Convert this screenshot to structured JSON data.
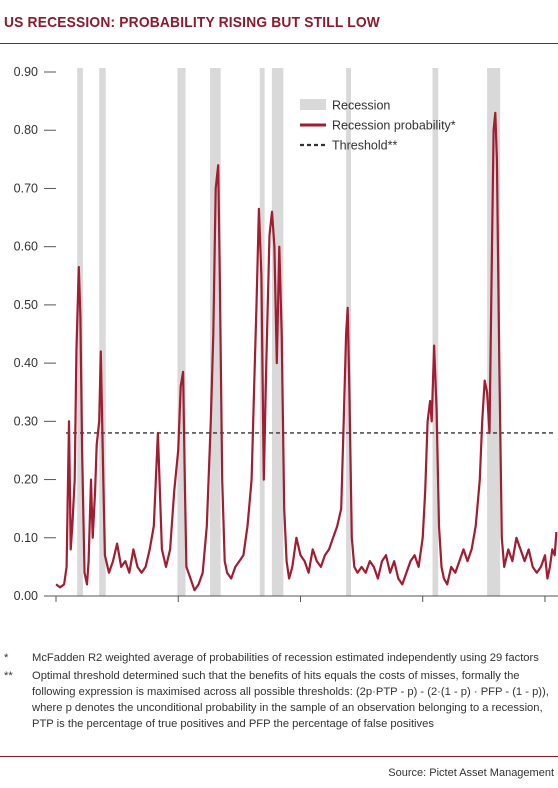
{
  "title": "US RECESSION: PROBABILITY RISING BUT STILL LOW",
  "notes": [
    {
      "marker": "*",
      "text": "McFadden R2 weighted average of probabilities of recession estimated independently using 29 factors"
    },
    {
      "marker": "**",
      "text": "Optimal threshold determined such that the benefits of hits equals the costs of misses, formally the following expression is maximised across all possible thresholds: (2p·PTP - p) - (2·(1 - p) · PFP - (1 - p)), where p denotes the unconditional probability in the sample of an observation belonging to a recession, PTP is the percentage of true positives and PFP the percentage of false positives"
    }
  ],
  "source": "Source: Pictet Asset Management",
  "colors": {
    "line": "#a01d32",
    "shade": "#d9d9d9",
    "threshold": "#333333",
    "title": "#8c1a2e"
  },
  "chart_data": {
    "type": "line",
    "xlim": [
      1955,
      2016.6
    ],
    "ylim": [
      0,
      0.9
    ],
    "yticks": [
      "0.00",
      "0.10",
      "0.20",
      "0.30",
      "0.40",
      "0.50",
      "0.60",
      "0.70",
      "0.80",
      "0.90"
    ],
    "ytick_values": [
      0,
      0.1,
      0.2,
      0.3,
      0.4,
      0.5,
      0.6,
      0.7,
      0.8,
      0.9
    ],
    "xticks": [
      "1955",
      "1970",
      "1985",
      "2000",
      "2015"
    ],
    "xtick_values": [
      1955,
      1970,
      1985,
      2000,
      2015
    ],
    "legend": {
      "position": "top-center",
      "items": [
        {
          "label": "Recession",
          "kind": "band"
        },
        {
          "label": "Recession probability*",
          "kind": "line"
        },
        {
          "label": "Threshold**",
          "kind": "dashed"
        }
      ]
    },
    "recessions": [
      [
        1957.6,
        1958.3
      ],
      [
        1960.3,
        1961.1
      ],
      [
        1969.9,
        1970.9
      ],
      [
        1973.9,
        1975.2
      ],
      [
        1980.0,
        1980.6
      ],
      [
        1981.5,
        1982.9
      ],
      [
        1990.6,
        1991.2
      ],
      [
        2001.2,
        2001.9
      ],
      [
        2007.9,
        2009.5
      ]
    ],
    "threshold": 0.28,
    "series": [
      {
        "values": [
          [
            1955.0,
            0.02
          ],
          [
            1955.5,
            0.015
          ],
          [
            1956.0,
            0.02
          ],
          [
            1956.3,
            0.05
          ],
          [
            1956.6,
            0.3
          ],
          [
            1956.8,
            0.08
          ],
          [
            1957.0,
            0.12
          ],
          [
            1957.3,
            0.2
          ],
          [
            1957.5,
            0.42
          ],
          [
            1957.8,
            0.565
          ],
          [
            1958.0,
            0.48
          ],
          [
            1958.2,
            0.25
          ],
          [
            1958.5,
            0.04
          ],
          [
            1958.8,
            0.02
          ],
          [
            1959.0,
            0.06
          ],
          [
            1959.3,
            0.2
          ],
          [
            1959.5,
            0.1
          ],
          [
            1959.8,
            0.18
          ],
          [
            1960.0,
            0.26
          ],
          [
            1960.3,
            0.3
          ],
          [
            1960.5,
            0.42
          ],
          [
            1960.8,
            0.2
          ],
          [
            1961.0,
            0.07
          ],
          [
            1961.5,
            0.04
          ],
          [
            1962.0,
            0.06
          ],
          [
            1962.5,
            0.09
          ],
          [
            1963.0,
            0.05
          ],
          [
            1963.5,
            0.06
          ],
          [
            1964.0,
            0.04
          ],
          [
            1964.5,
            0.08
          ],
          [
            1965.0,
            0.05
          ],
          [
            1965.5,
            0.04
          ],
          [
            1966.0,
            0.05
          ],
          [
            1966.5,
            0.08
          ],
          [
            1967.0,
            0.12
          ],
          [
            1967.5,
            0.28
          ],
          [
            1968.0,
            0.08
          ],
          [
            1968.5,
            0.05
          ],
          [
            1969.0,
            0.08
          ],
          [
            1969.5,
            0.18
          ],
          [
            1970.0,
            0.25
          ],
          [
            1970.3,
            0.36
          ],
          [
            1970.6,
            0.385
          ],
          [
            1970.8,
            0.2
          ],
          [
            1971.0,
            0.05
          ],
          [
            1971.5,
            0.03
          ],
          [
            1972.0,
            0.01
          ],
          [
            1972.5,
            0.02
          ],
          [
            1973.0,
            0.04
          ],
          [
            1973.5,
            0.12
          ],
          [
            1974.0,
            0.3
          ],
          [
            1974.3,
            0.45
          ],
          [
            1974.6,
            0.7
          ],
          [
            1974.9,
            0.74
          ],
          [
            1975.1,
            0.55
          ],
          [
            1975.4,
            0.2
          ],
          [
            1975.7,
            0.06
          ],
          [
            1976.0,
            0.04
          ],
          [
            1976.5,
            0.03
          ],
          [
            1977.0,
            0.05
          ],
          [
            1977.5,
            0.06
          ],
          [
            1978.0,
            0.07
          ],
          [
            1978.5,
            0.12
          ],
          [
            1979.0,
            0.2
          ],
          [
            1979.3,
            0.35
          ],
          [
            1979.6,
            0.5
          ],
          [
            1979.9,
            0.665
          ],
          [
            1980.2,
            0.55
          ],
          [
            1980.5,
            0.2
          ],
          [
            1980.8,
            0.4
          ],
          [
            1981.2,
            0.62
          ],
          [
            1981.5,
            0.66
          ],
          [
            1981.8,
            0.6
          ],
          [
            1982.1,
            0.4
          ],
          [
            1982.4,
            0.6
          ],
          [
            1982.7,
            0.45
          ],
          [
            1983.0,
            0.15
          ],
          [
            1983.3,
            0.06
          ],
          [
            1983.6,
            0.03
          ],
          [
            1984.0,
            0.05
          ],
          [
            1984.5,
            0.1
          ],
          [
            1985.0,
            0.07
          ],
          [
            1985.5,
            0.06
          ],
          [
            1986.0,
            0.04
          ],
          [
            1986.5,
            0.08
          ],
          [
            1987.0,
            0.06
          ],
          [
            1987.5,
            0.05
          ],
          [
            1988.0,
            0.07
          ],
          [
            1988.5,
            0.08
          ],
          [
            1989.0,
            0.1
          ],
          [
            1989.5,
            0.12
          ],
          [
            1990.0,
            0.15
          ],
          [
            1990.3,
            0.3
          ],
          [
            1990.6,
            0.45
          ],
          [
            1990.8,
            0.495
          ],
          [
            1991.0,
            0.35
          ],
          [
            1991.3,
            0.1
          ],
          [
            1991.6,
            0.05
          ],
          [
            1992.0,
            0.04
          ],
          [
            1992.5,
            0.05
          ],
          [
            1993.0,
            0.04
          ],
          [
            1993.5,
            0.06
          ],
          [
            1994.0,
            0.05
          ],
          [
            1994.5,
            0.03
          ],
          [
            1995.0,
            0.06
          ],
          [
            1995.5,
            0.07
          ],
          [
            1996.0,
            0.04
          ],
          [
            1996.5,
            0.06
          ],
          [
            1997.0,
            0.03
          ],
          [
            1997.5,
            0.02
          ],
          [
            1998.0,
            0.04
          ],
          [
            1998.5,
            0.06
          ],
          [
            1999.0,
            0.07
          ],
          [
            1999.5,
            0.05
          ],
          [
            2000.0,
            0.1
          ],
          [
            2000.3,
            0.18
          ],
          [
            2000.6,
            0.3
          ],
          [
            2000.9,
            0.335
          ],
          [
            2001.1,
            0.3
          ],
          [
            2001.4,
            0.43
          ],
          [
            2001.7,
            0.32
          ],
          [
            2002.0,
            0.12
          ],
          [
            2002.3,
            0.05
          ],
          [
            2002.6,
            0.03
          ],
          [
            2003.0,
            0.02
          ],
          [
            2003.5,
            0.05
          ],
          [
            2004.0,
            0.04
          ],
          [
            2004.5,
            0.06
          ],
          [
            2005.0,
            0.08
          ],
          [
            2005.5,
            0.06
          ],
          [
            2006.0,
            0.08
          ],
          [
            2006.5,
            0.12
          ],
          [
            2007.0,
            0.2
          ],
          [
            2007.3,
            0.3
          ],
          [
            2007.6,
            0.37
          ],
          [
            2007.9,
            0.35
          ],
          [
            2008.2,
            0.28
          ],
          [
            2008.5,
            0.6
          ],
          [
            2008.7,
            0.8
          ],
          [
            2008.9,
            0.83
          ],
          [
            2009.1,
            0.75
          ],
          [
            2009.4,
            0.4
          ],
          [
            2009.7,
            0.1
          ],
          [
            2010.0,
            0.05
          ],
          [
            2010.5,
            0.08
          ],
          [
            2011.0,
            0.06
          ],
          [
            2011.5,
            0.1
          ],
          [
            2012.0,
            0.08
          ],
          [
            2012.5,
            0.06
          ],
          [
            2013.0,
            0.08
          ],
          [
            2013.5,
            0.05
          ],
          [
            2014.0,
            0.04
          ],
          [
            2014.5,
            0.05
          ],
          [
            2015.0,
            0.07
          ],
          [
            2015.3,
            0.03
          ],
          [
            2015.6,
            0.05
          ],
          [
            2015.9,
            0.08
          ],
          [
            2016.2,
            0.07
          ],
          [
            2016.4,
            0.11
          ]
        ]
      }
    ]
  }
}
